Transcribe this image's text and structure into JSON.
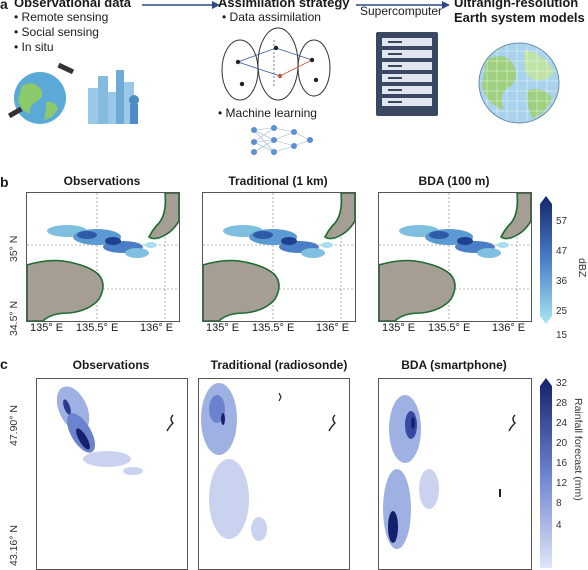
{
  "panel_a": {
    "letter": "a",
    "observational": {
      "heading": "Observational data",
      "items": [
        "Remote sensing",
        "Social sensing",
        "In situ"
      ]
    },
    "assimilation": {
      "heading": "Assimilation strategy",
      "items": [
        "Data assimilation",
        "Machine learning"
      ]
    },
    "supercomputer_label": "Supercomputer",
    "models": {
      "heading_line1": "Ultrahigh-resolution",
      "heading_line2": "Earth system models"
    }
  },
  "panel_b": {
    "letter": "b",
    "titles": [
      "Observations",
      "Traditional (1 km)",
      "BDA (100 m)"
    ],
    "x_ticks": [
      "135° E",
      "135.5° E",
      "136° E"
    ],
    "y_ticks": [
      "35° N",
      "34.5° N"
    ],
    "colorbar": {
      "label": "dBZ",
      "ticks": [
        "57",
        "47",
        "36",
        "25",
        "15"
      ]
    }
  },
  "panel_c": {
    "letter": "c",
    "titles": [
      "Observations",
      "Traditional (radiosonde)",
      "BDA (smartphone)"
    ],
    "y_ticks": [
      "47.90° N",
      "43.16° N"
    ],
    "colorbar": {
      "label": "Rainfall forecast (mm)",
      "ticks": [
        "32",
        "28",
        "24",
        "20",
        "16",
        "12",
        "8",
        "4"
      ]
    }
  },
  "colors": {
    "radar_dark": "#1f3f8f",
    "radar_light": "#7fd3e6",
    "land": "#a59e94",
    "coast": "#1d6b2e",
    "rain_dark": "#14206b",
    "rain_light": "#c9d2ef"
  }
}
